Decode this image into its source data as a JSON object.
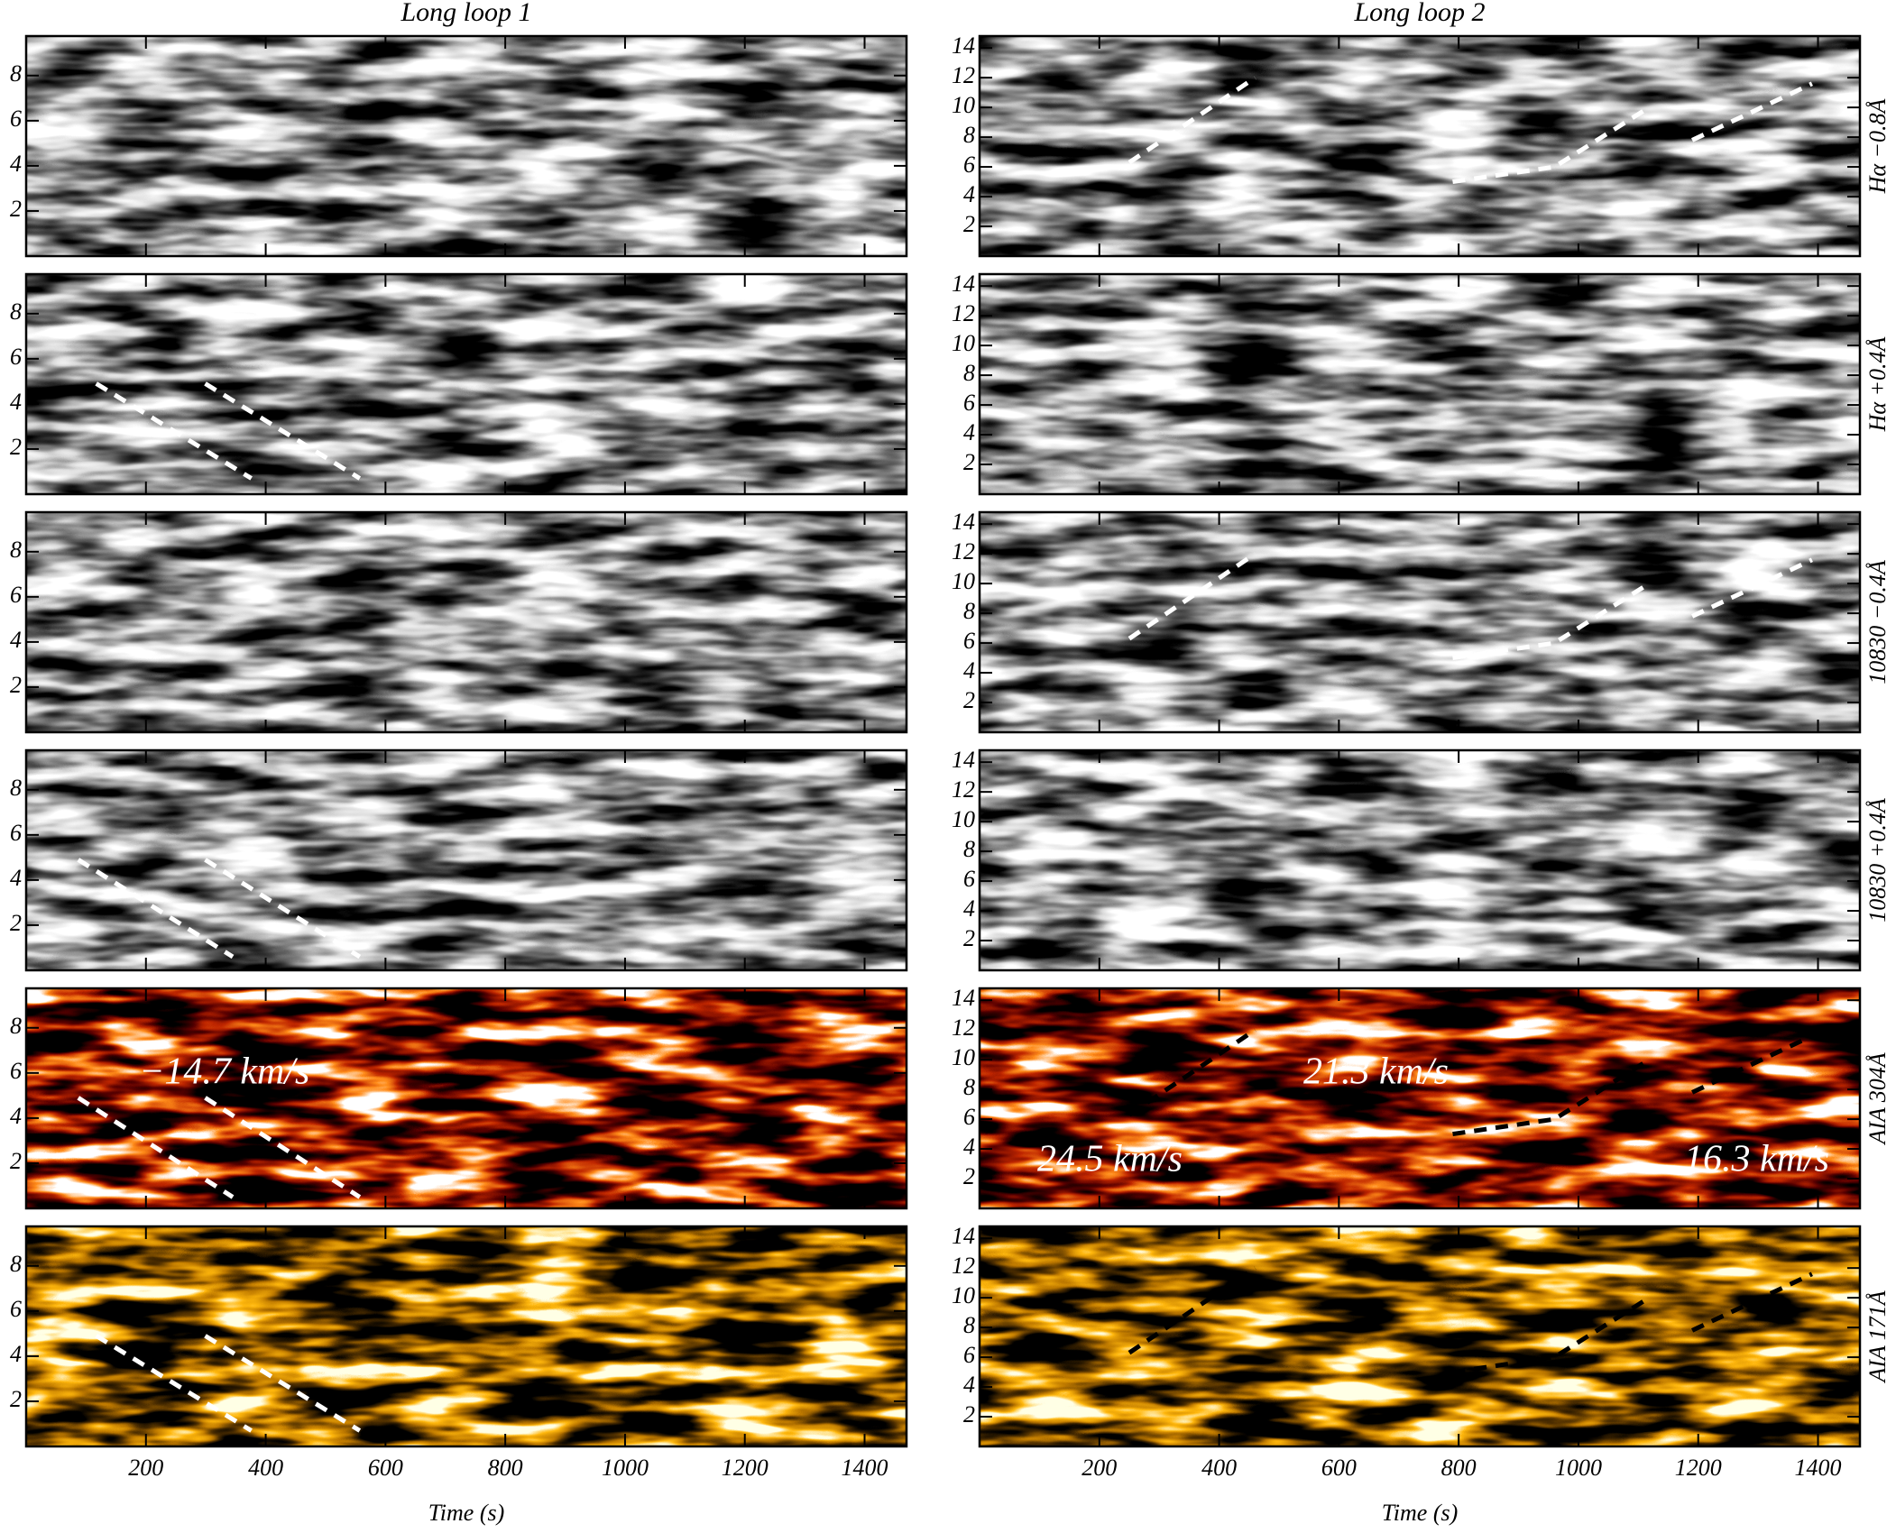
{
  "chart_data": [
    {
      "type": "heatmap",
      "title": "Long loop 1",
      "colormap": "gray",
      "seed": 3,
      "xlim": [
        0,
        1470
      ],
      "xticks": [
        200,
        400,
        600,
        800,
        1000,
        1200,
        1400
      ],
      "xtick_labels": false,
      "ylim": [
        0,
        9.75
      ],
      "yticks": [
        2,
        4,
        6,
        8
      ],
      "series": []
    },
    {
      "type": "heatmap",
      "title": "Long loop 2",
      "side_label": "Hα −0.8Å",
      "colormap": "gray",
      "seed": 5,
      "xlim": [
        0,
        1470
      ],
      "xticks": [
        200,
        400,
        600,
        800,
        1000,
        1200,
        1400
      ],
      "xtick_labels": false,
      "ylim": [
        0,
        14.8
      ],
      "yticks": [
        2,
        4,
        6,
        8,
        10,
        12,
        14
      ],
      "series": [
        {
          "color": "#ffffff",
          "x": [
            250,
            460
          ],
          "values": [
            6.3,
            12
          ]
        },
        {
          "color": "#ffffff",
          "x": [
            790,
            960,
            1110
          ],
          "values": [
            5,
            6,
            9.8
          ]
        },
        {
          "color": "#ffffff",
          "x": [
            1190,
            1390
          ],
          "values": [
            7.8,
            11.6
          ]
        }
      ]
    },
    {
      "type": "heatmap",
      "colormap": "gray",
      "seed": 8,
      "xlim": [
        0,
        1470
      ],
      "xticks": [
        200,
        400,
        600,
        800,
        1000,
        1200,
        1400
      ],
      "xtick_labels": false,
      "ylim": [
        0,
        9.75
      ],
      "yticks": [
        2,
        4,
        6,
        8
      ],
      "series": [
        {
          "color": "#ffffff",
          "x": [
            117,
            376
          ],
          "values": [
            4.9,
            0.7
          ]
        },
        {
          "color": "#ffffff",
          "x": [
            299,
            557
          ],
          "values": [
            4.9,
            0.7
          ]
        }
      ]
    },
    {
      "type": "heatmap",
      "side_label": "Hα +0.4Å",
      "colormap": "gray",
      "seed": 11,
      "xlim": [
        0,
        1470
      ],
      "xticks": [
        200,
        400,
        600,
        800,
        1000,
        1200,
        1400
      ],
      "xtick_labels": false,
      "ylim": [
        0,
        14.8
      ],
      "yticks": [
        2,
        4,
        6,
        8,
        10,
        12,
        14
      ],
      "series": []
    },
    {
      "type": "heatmap",
      "colormap": "gray",
      "seed": 14,
      "xlim": [
        0,
        1470
      ],
      "xticks": [
        200,
        400,
        600,
        800,
        1000,
        1200,
        1400
      ],
      "xtick_labels": false,
      "ylim": [
        0,
        9.75
      ],
      "yticks": [
        2,
        4,
        6,
        8
      ],
      "series": []
    },
    {
      "type": "heatmap",
      "side_label": "10830 −0.4Å",
      "colormap": "gray",
      "seed": 17,
      "xlim": [
        0,
        1470
      ],
      "xticks": [
        200,
        400,
        600,
        800,
        1000,
        1200,
        1400
      ],
      "xtick_labels": false,
      "ylim": [
        0,
        14.8
      ],
      "yticks": [
        2,
        4,
        6,
        8,
        10,
        12,
        14
      ],
      "series": [
        {
          "color": "#ffffff",
          "x": [
            250,
            460
          ],
          "values": [
            6.3,
            12
          ]
        },
        {
          "color": "#ffffff",
          "x": [
            790,
            960,
            1110
          ],
          "values": [
            5,
            6,
            9.8
          ]
        },
        {
          "color": "#ffffff",
          "x": [
            1190,
            1390
          ],
          "values": [
            7.8,
            11.6
          ]
        }
      ]
    },
    {
      "type": "heatmap",
      "colormap": "gray",
      "seed": 20,
      "xlim": [
        0,
        1470
      ],
      "xticks": [
        200,
        400,
        600,
        800,
        1000,
        1200,
        1400
      ],
      "xtick_labels": false,
      "ylim": [
        0,
        9.75
      ],
      "yticks": [
        2,
        4,
        6,
        8
      ],
      "series": [
        {
          "color": "#ffffff",
          "x": [
            87,
            345
          ],
          "values": [
            4.9,
            0.6
          ]
        },
        {
          "color": "#ffffff",
          "x": [
            299,
            557
          ],
          "values": [
            4.9,
            0.6
          ]
        }
      ]
    },
    {
      "type": "heatmap",
      "side_label": "10830 +0.4Å",
      "colormap": "gray",
      "seed": 23,
      "xlim": [
        0,
        1470
      ],
      "xticks": [
        200,
        400,
        600,
        800,
        1000,
        1200,
        1400
      ],
      "xtick_labels": false,
      "ylim": [
        0,
        14.8
      ],
      "yticks": [
        2,
        4,
        6,
        8,
        10,
        12,
        14
      ],
      "series": []
    },
    {
      "type": "heatmap",
      "colormap": "heat",
      "seed": 26,
      "xlim": [
        0,
        1470
      ],
      "xticks": [
        200,
        400,
        600,
        800,
        1000,
        1200,
        1400
      ],
      "xtick_labels": false,
      "ylim": [
        0,
        9.75
      ],
      "yticks": [
        2,
        4,
        6,
        8
      ],
      "annotations": [
        "−14.7 km/s"
      ],
      "series": [
        {
          "color": "#ffffff",
          "x": [
            87,
            345
          ],
          "values": [
            4.9,
            0.5
          ]
        },
        {
          "color": "#ffffff",
          "x": [
            299,
            557
          ],
          "values": [
            4.9,
            0.5
          ]
        }
      ]
    },
    {
      "type": "heatmap",
      "side_label": "AIA 304Å",
      "colormap": "heat",
      "seed": 29,
      "xlim": [
        0,
        1470
      ],
      "xticks": [
        200,
        400,
        600,
        800,
        1000,
        1200,
        1400
      ],
      "xtick_labels": false,
      "ylim": [
        0,
        14.8
      ],
      "yticks": [
        2,
        4,
        6,
        8,
        10,
        12,
        14
      ],
      "annotations": [
        "21.3 km/s",
        "24.5 km/s",
        "16.3 km/s"
      ],
      "series": [
        {
          "color": "#000000",
          "x": [
            250,
            460
          ],
          "values": [
            6.3,
            12
          ]
        },
        {
          "color": "#000000",
          "x": [
            790,
            960,
            1110
          ],
          "values": [
            5,
            6,
            9.8
          ]
        },
        {
          "color": "#000000",
          "x": [
            1190,
            1390
          ],
          "values": [
            7.8,
            11.6
          ]
        }
      ]
    },
    {
      "type": "heatmap",
      "xlabel": "Time (s)",
      "colormap": "gold",
      "seed": 32,
      "xlim": [
        0,
        1470
      ],
      "xticks": [
        200,
        400,
        600,
        800,
        1000,
        1200,
        1400
      ],
      "xtick_labels": true,
      "ylim": [
        0,
        9.75
      ],
      "yticks": [
        2,
        4,
        6,
        8
      ],
      "series": [
        {
          "color": "#ffffff",
          "x": [
            117,
            376
          ],
          "values": [
            4.9,
            0.7
          ]
        },
        {
          "color": "#ffffff",
          "x": [
            299,
            557
          ],
          "values": [
            4.9,
            0.7
          ]
        }
      ]
    },
    {
      "type": "heatmap",
      "xlabel": "Time (s)",
      "side_label": "AIA 171Å",
      "colormap": "gold",
      "seed": 35,
      "xlim": [
        0,
        1470
      ],
      "xticks": [
        200,
        400,
        600,
        800,
        1000,
        1200,
        1400
      ],
      "xtick_labels": true,
      "ylim": [
        0,
        14.8
      ],
      "yticks": [
        2,
        4,
        6,
        8,
        10,
        12,
        14
      ],
      "series": [
        {
          "color": "#000000",
          "x": [
            250,
            460
          ],
          "values": [
            6.3,
            12
          ]
        },
        {
          "color": "#000000",
          "x": [
            790,
            960,
            1110
          ],
          "values": [
            5,
            6,
            9.8
          ]
        },
        {
          "color": "#000000",
          "x": [
            1190,
            1390
          ],
          "values": [
            7.8,
            11.6
          ]
        }
      ]
    }
  ]
}
